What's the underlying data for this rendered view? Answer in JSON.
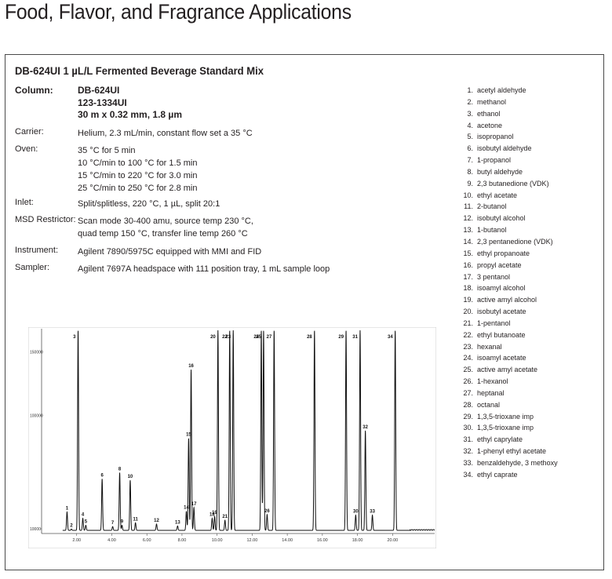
{
  "page": {
    "title": "Food, Flavor, and Fragrance Applications"
  },
  "method": {
    "title": "DB-624UI 1 µL/L Fermented Beverage Standard Mix",
    "column": {
      "label": "Column:",
      "lines": [
        "DB-624UI",
        "123-1334UI",
        "30 m x 0.32 mm, 1.8 µm"
      ]
    },
    "carrier": {
      "label": "Carrier:",
      "lines": [
        "Helium, 2.3 mL/min, constant flow set a 35 °C"
      ]
    },
    "oven": {
      "label": "Oven:",
      "lines": [
        "35 °C  for 5 min",
        "10 °C/min to 100 °C  for 1.5 min",
        "15 °C/min to 220 °C for 3.0 min",
        "25 °C/min to 250 °C for 2.8 min"
      ]
    },
    "inlet": {
      "label": "Inlet:",
      "lines": [
        "Split/splitless, 220 °C, 1 µL, split 20:1"
      ]
    },
    "msd": {
      "label": "MSD Restrictor:",
      "lines": [
        "Scan mode 30-400 amu, source temp 230 °C,",
        "quad temp 150 °C, transfer line temp 260 °C"
      ]
    },
    "instrument": {
      "label": "Instrument:",
      "lines": [
        "Agilent 7890/5975C equipped with MMI and FID"
      ]
    },
    "sampler": {
      "label": "Sampler:",
      "lines": [
        "Agilent 7697A headspace with 111 position tray, 1 mL sample loop"
      ]
    }
  },
  "legend": [
    {
      "num": "1.",
      "name": "acetyl aldehyde"
    },
    {
      "num": "2.",
      "name": "methanol"
    },
    {
      "num": "3.",
      "name": "ethanol"
    },
    {
      "num": "4.",
      "name": "acetone"
    },
    {
      "num": "5.",
      "name": "isopropanol"
    },
    {
      "num": "6.",
      "name": "isobutyl aldehyde"
    },
    {
      "num": "7.",
      "name": "1-propanol"
    },
    {
      "num": "8.",
      "name": "butyl aldehyde"
    },
    {
      "num": "9.",
      "name": "2,3 butanedione (VDK)"
    },
    {
      "num": "10.",
      "name": "ethyl acetate"
    },
    {
      "num": "11.",
      "name": "2-butanol"
    },
    {
      "num": "12.",
      "name": "isobutyl alcohol"
    },
    {
      "num": "13.",
      "name": "1-butanol"
    },
    {
      "num": "14.",
      "name": "2,3 pentanedione (VDK)"
    },
    {
      "num": "15.",
      "name": "ethyl propanoate"
    },
    {
      "num": "16.",
      "name": "propyl acetate"
    },
    {
      "num": "17.",
      "name": "3 pentanol"
    },
    {
      "num": "18.",
      "name": "isoamyl alcohol"
    },
    {
      "num": "19.",
      "name": "active amyl alcohol"
    },
    {
      "num": "20.",
      "name": "isobutyl acetate"
    },
    {
      "num": "21.",
      "name": "1-pentanol"
    },
    {
      "num": "22.",
      "name": "ethyl butanoate"
    },
    {
      "num": "23.",
      "name": "hexanal"
    },
    {
      "num": "24.",
      "name": "isoamyl acetate"
    },
    {
      "num": "25.",
      "name": "active amyl acetate"
    },
    {
      "num": "26.",
      "name": "1-hexanol"
    },
    {
      "num": "27.",
      "name": "heptanal"
    },
    {
      "num": "28.",
      "name": "octanal"
    },
    {
      "num": "29.",
      "name": "1,3,5-trioxane imp"
    },
    {
      "num": "30.",
      "name": "1,3,5-trioxane imp"
    },
    {
      "num": "31.",
      "name": "ethyl caprylate"
    },
    {
      "num": "32.",
      "name": "1-phenyl ethyl acetate"
    },
    {
      "num": "33.",
      "name": "benzaldehyde, 3 methoxy"
    },
    {
      "num": "34.",
      "name": "ethyl caprate"
    }
  ],
  "chart_data": {
    "type": "line",
    "title": "",
    "xlabel": "",
    "ylabel": "",
    "xlim": [
      0.0,
      22.4
    ],
    "ylim": [
      0,
      167000
    ],
    "x_ticks": [
      "2.00",
      "4.00",
      "6.00",
      "8.00",
      "10.00",
      "12.00",
      "14.00",
      "16.00",
      "18.00",
      "20.00"
    ],
    "x_tick_values": [
      2,
      4,
      6,
      8,
      10,
      12,
      14,
      16,
      18,
      20
    ],
    "y_ticks": [
      "150000",
      "100000",
      "10000"
    ],
    "y_tick_values": [
      150000,
      100000,
      10000
    ],
    "baseline": 9500,
    "peaks": [
      {
        "label": "1",
        "rt": 1.45,
        "height": 24000
      },
      {
        "label": "2",
        "rt": 1.7,
        "height": 10500
      },
      {
        "label": "3",
        "rt": 2.08,
        "height": 167000
      },
      {
        "label": "4",
        "rt": 2.35,
        "height": 19000
      },
      {
        "label": "5",
        "rt": 2.52,
        "height": 13500
      },
      {
        "label": "6",
        "rt": 3.45,
        "height": 50000
      },
      {
        "label": "7",
        "rt": 4.05,
        "height": 12500
      },
      {
        "label": "8",
        "rt": 4.45,
        "height": 55000
      },
      {
        "label": "9",
        "rt": 4.58,
        "height": 13500
      },
      {
        "label": "10",
        "rt": 5.05,
        "height": 49000
      },
      {
        "label": "11",
        "rt": 5.35,
        "height": 15500
      },
      {
        "label": "12",
        "rt": 6.55,
        "height": 14500
      },
      {
        "label": "13",
        "rt": 7.75,
        "height": 13000
      },
      {
        "label": "14",
        "rt": 8.25,
        "height": 24500
      },
      {
        "label": "15",
        "rt": 8.38,
        "height": 82000
      },
      {
        "label": "16",
        "rt": 8.52,
        "height": 136000
      },
      {
        "label": "17",
        "rt": 8.68,
        "height": 27500
      },
      {
        "label": "18",
        "rt": 9.72,
        "height": 19000
      },
      {
        "label": "19",
        "rt": 9.86,
        "height": 20500
      },
      {
        "label": "20",
        "rt": 10.05,
        "height": 167000
      },
      {
        "label": "21",
        "rt": 10.45,
        "height": 17500
      },
      {
        "label": "22",
        "rt": 10.72,
        "height": 167000
      },
      {
        "label": "23",
        "rt": 10.92,
        "height": 167000
      },
      {
        "label": "24",
        "rt": 12.52,
        "height": 167000
      },
      {
        "label": "25",
        "rt": 12.65,
        "height": 167000
      },
      {
        "label": "26",
        "rt": 12.85,
        "height": 22000
      },
      {
        "label": "27",
        "rt": 13.25,
        "height": 167000
      },
      {
        "label": "28",
        "rt": 15.55,
        "height": 167000
      },
      {
        "label": "29",
        "rt": 17.35,
        "height": 167000
      },
      {
        "label": "30",
        "rt": 17.9,
        "height": 21500
      },
      {
        "label": "31",
        "rt": 18.15,
        "height": 167000
      },
      {
        "label": "32",
        "rt": 18.45,
        "height": 88000
      },
      {
        "label": "33",
        "rt": 18.85,
        "height": 21500
      },
      {
        "label": "34",
        "rt": 20.15,
        "height": 167000
      }
    ],
    "colors": {
      "trace": "#111111",
      "axis": "#555555"
    }
  }
}
